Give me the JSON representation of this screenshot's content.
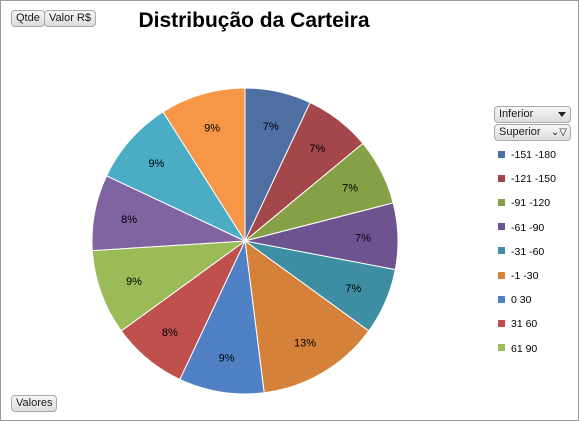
{
  "title": "Distribução da Carteira",
  "fields": {
    "qtde": "Qtde",
    "valor": "Valor R$",
    "valores": "Valores",
    "inferior": "Inferior",
    "superior": "Superior"
  },
  "chart_data": {
    "type": "pie",
    "title": "Distribução da Carteira",
    "start": "12 o'clock, clockwise",
    "legend_position": "right",
    "slices": [
      {
        "label": "-151 -180",
        "value": 7,
        "display": "7%",
        "color": "#4F6FA3"
      },
      {
        "label": "-121 -150",
        "value": 7,
        "display": "7%",
        "color": "#A4474A"
      },
      {
        "label": "-91 -120",
        "value": 7,
        "display": "7%",
        "color": "#86A046"
      },
      {
        "label": "-61 -90",
        "value": 7,
        "display": "7%",
        "color": "#6D5491"
      },
      {
        "label": "-31 -60",
        "value": 7,
        "display": "7%",
        "color": "#3E8EA3"
      },
      {
        "label": "-1 -30",
        "value": 13,
        "display": "13%",
        "color": "#D5813A"
      },
      {
        "label": "0 30",
        "value": 9,
        "display": "9%",
        "color": "#4F81C4"
      },
      {
        "label": "31 60",
        "value": 8,
        "display": "8%",
        "color": "#C0504D"
      },
      {
        "label": "61 90",
        "value": 9,
        "display": "9%",
        "color": "#9BBB59"
      },
      {
        "value": 8,
        "display": "8%",
        "color": "#8064A2"
      },
      {
        "value": 9,
        "display": "9%",
        "color": "#4BACC6"
      },
      {
        "value": 9,
        "display": "9%",
        "color": "#F79646"
      }
    ]
  }
}
